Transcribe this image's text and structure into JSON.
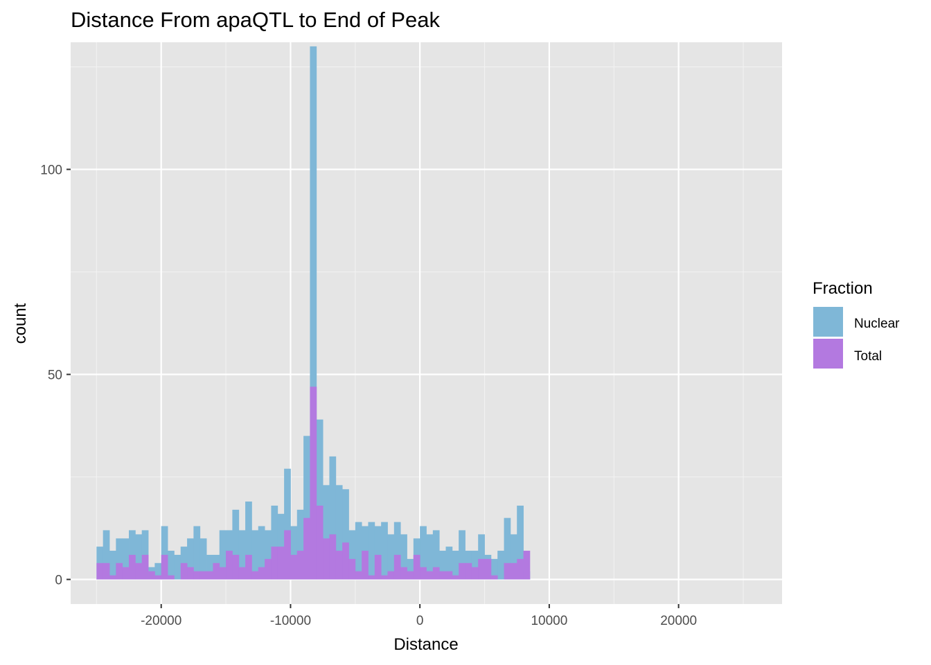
{
  "chart_data": {
    "type": "bar",
    "subtype": "overlaid-histogram",
    "title": "Distance From apaQTL to End of Peak",
    "xlabel": "Distance",
    "ylabel": "count",
    "xlim": [
      -27000,
      28000
    ],
    "ylim": [
      -6,
      131
    ],
    "x_ticks": [
      -20000,
      -10000,
      0,
      10000,
      20000
    ],
    "x_tick_labels": [
      "-20000",
      "-10000",
      "0",
      "10000",
      "20000"
    ],
    "y_ticks": [
      0,
      50,
      100
    ],
    "y_tick_labels": [
      "0",
      "50",
      "100"
    ],
    "bin_start": -25000,
    "bin_width": 500,
    "legend": {
      "title": "Fraction",
      "position": "right"
    },
    "series": [
      {
        "name": "Nuclear",
        "color": "#7fb7d7",
        "values": [
          8,
          12,
          7,
          10,
          10,
          12,
          11,
          12,
          3,
          4,
          13,
          7,
          6,
          8,
          10,
          13,
          10,
          6,
          6,
          12,
          12,
          17,
          12,
          19,
          12,
          13,
          12,
          18,
          16,
          27,
          13,
          17,
          35,
          130,
          39,
          23,
          30,
          23,
          22,
          12,
          14,
          13,
          14,
          13,
          14,
          11,
          14,
          11,
          5,
          10,
          13,
          11,
          12,
          7,
          8,
          7,
          12,
          7,
          7,
          11,
          6,
          5,
          7,
          15,
          11,
          18,
          2
        ]
      },
      {
        "name": "Total",
        "color": "#b379e0",
        "values": [
          4,
          4,
          1,
          4,
          3,
          6,
          4,
          6,
          2,
          1,
          6,
          1,
          0,
          4,
          3,
          2,
          2,
          2,
          4,
          3,
          7,
          6,
          3,
          6,
          2,
          3,
          5,
          8,
          8,
          12,
          6,
          7,
          15,
          47,
          18,
          10,
          11,
          7,
          9,
          5,
          2,
          7,
          1,
          6,
          1,
          2,
          6,
          3,
          2,
          6,
          3,
          2,
          3,
          2,
          2,
          1,
          4,
          4,
          3,
          5,
          5,
          1,
          0,
          4,
          4,
          5,
          7
        ]
      }
    ]
  }
}
